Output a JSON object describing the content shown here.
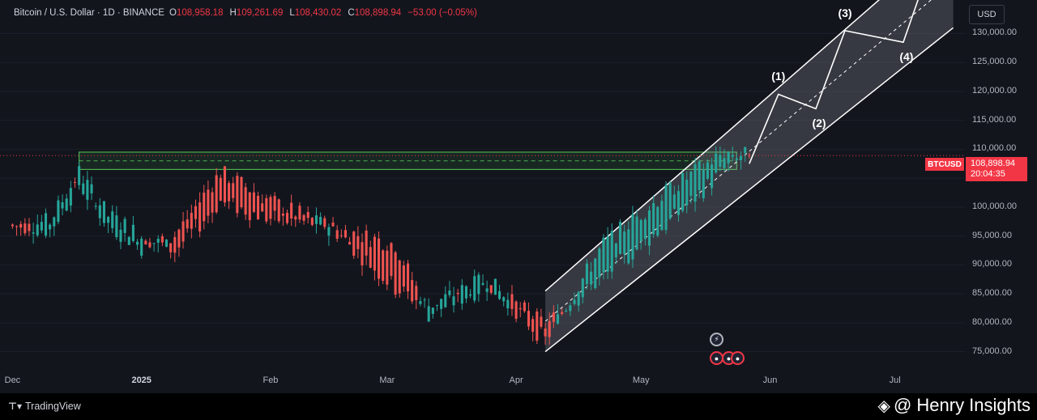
{
  "header": {
    "symbol": "Bitcoin / U.S. Dollar · 1D · BINANCE",
    "open_label": "O",
    "open": "108,958.18",
    "high_label": "H",
    "high": "109,261.69",
    "low_label": "L",
    "low": "108,430.02",
    "close_label": "C",
    "close": "108,898.94",
    "change": "−53.00 (−0.05%)"
  },
  "currency_button": "USD",
  "price_axis": {
    "ticks": [
      "130,000.00",
      "125,000.00",
      "120,000.00",
      "115,000.00",
      "110,000.00",
      "105,000.00",
      "100,000.00",
      "95,000.00",
      "90,000.00",
      "85,000.00",
      "80,000.00",
      "75,000.00"
    ],
    "last_price_symbol": "BTCUSD",
    "last_price": "108,898.94",
    "countdown": "20:04:35"
  },
  "time_axis": {
    "ticks": [
      {
        "label": "Dec",
        "bold": false
      },
      {
        "label": "2025",
        "bold": true
      },
      {
        "label": "Feb",
        "bold": false
      },
      {
        "label": "Mar",
        "bold": false
      },
      {
        "label": "Apr",
        "bold": false
      },
      {
        "label": "May",
        "bold": false
      },
      {
        "label": "Jun",
        "bold": false
      },
      {
        "label": "Jul",
        "bold": false
      }
    ]
  },
  "wave_labels": [
    "(1)",
    "(2)",
    "(3)",
    "(4)"
  ],
  "footer": {
    "brand": "TradingView",
    "watermark": "@ Henry Insights"
  },
  "colors": {
    "up": "#26a69a",
    "down": "#ef5350",
    "background": "#13151d",
    "channel_fill": "#9598a1",
    "zone": "#4caf50",
    "last_price": "#f23645"
  },
  "chart_data": {
    "type": "candlestick",
    "title": "Bitcoin / U.S. Dollar · 1D · BINANCE",
    "ylabel": "USD",
    "ylim": [
      72000,
      133000
    ],
    "x_range": [
      "2024-11-28",
      "2025-07-18"
    ],
    "last_price": 108898.94,
    "candles": [
      {
        "date": "2024-12-01",
        "open": 97000,
        "close": 96500
      },
      {
        "date": "2024-12-10",
        "open": 96000,
        "close": 97500
      },
      {
        "date": "2024-12-17",
        "open": 104000,
        "close": 106000
      },
      {
        "date": "2024-12-24",
        "open": 97000,
        "close": 98500
      },
      {
        "date": "2025-01-01",
        "open": 93000,
        "close": 95000
      },
      {
        "date": "2025-01-09",
        "open": 95000,
        "close": 92500
      },
      {
        "date": "2025-01-20",
        "open": 106000,
        "close": 101000
      },
      {
        "date": "2025-02-01",
        "open": 101000,
        "close": 98000
      },
      {
        "date": "2025-02-15",
        "open": 96500,
        "close": 97000
      },
      {
        "date": "2025-03-03",
        "open": 93500,
        "close": 86000
      },
      {
        "date": "2025-03-11",
        "open": 81500,
        "close": 83000
      },
      {
        "date": "2025-03-25",
        "open": 86500,
        "close": 87500
      },
      {
        "date": "2025-04-08",
        "open": 79500,
        "close": 77000
      },
      {
        "date": "2025-04-22",
        "open": 88000,
        "close": 93500
      },
      {
        "date": "2025-05-08",
        "open": 97500,
        "close": 103000
      },
      {
        "date": "2025-05-21",
        "open": 106500,
        "close": 109500
      },
      {
        "date": "2025-05-27",
        "open": 109000,
        "close": 108899
      }
    ],
    "resistance_zone": {
      "from": "2024-12-17",
      "to": "2025-05-24",
      "low": 106500,
      "high": 109500,
      "mid": 108000
    },
    "channel": {
      "lower": [
        {
          "date": "2025-04-08",
          "value": 75000
        },
        {
          "date": "2025-07-15",
          "value": 131000
        }
      ],
      "upper": [
        {
          "date": "2025-04-08",
          "value": 85500
        },
        {
          "date": "2025-07-15",
          "value": 147000
        }
      ]
    },
    "wave_projection": [
      {
        "date": "2025-05-27",
        "value": 107500
      },
      {
        "date": "2025-06-03",
        "value": 119500
      },
      {
        "date": "2025-06-12",
        "value": 117000
      },
      {
        "date": "2025-06-19",
        "value": 130500
      },
      {
        "date": "2025-07-03",
        "value": 128500
      },
      {
        "date": "2025-07-11",
        "value": 145000
      }
    ],
    "wave_points": [
      {
        "label": "(1)",
        "date": "2025-06-03",
        "value": 119500
      },
      {
        "label": "(2)",
        "date": "2025-06-12",
        "value": 117000
      },
      {
        "label": "(3)",
        "date": "2025-06-19",
        "value": 130500
      },
      {
        "label": "(4)",
        "date": "2025-07-03",
        "value": 128500
      }
    ]
  }
}
